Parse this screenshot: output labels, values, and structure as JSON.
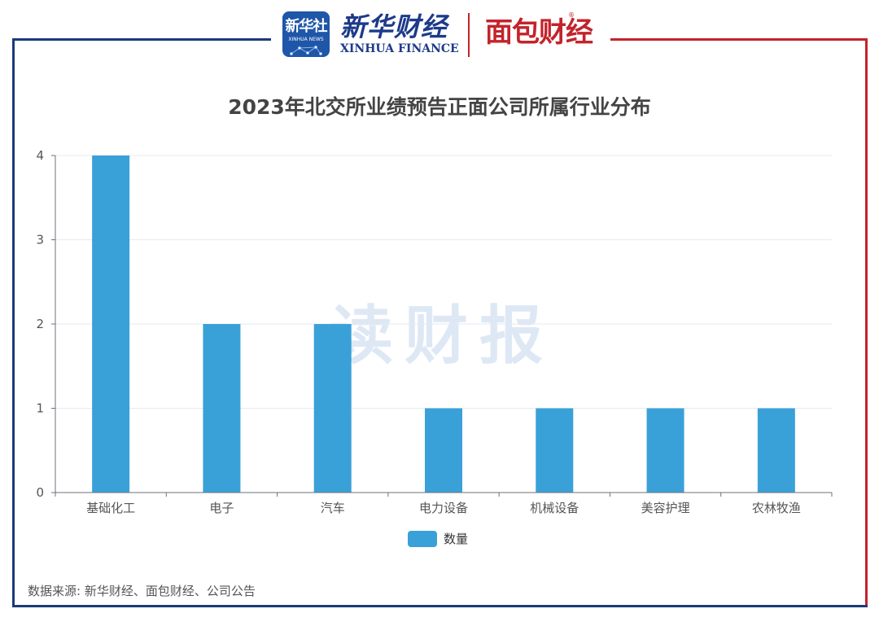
{
  "brand": {
    "xinhua_badge": "新华社",
    "xinhua_badge_en": "XINHUA NEWS",
    "xinhua_finance_cn": "新华财经",
    "xinhua_finance_en": "XINHUA FINANCE",
    "mianbao": "面包财经",
    "registered_mark": "®"
  },
  "watermark": "读财报",
  "source": "数据来源: 新华财经、面包财经、公司公告",
  "colors": {
    "bar": "#3aa0d8",
    "frame_blue": "#1d3a78",
    "frame_red": "#c4232b"
  },
  "chart_data": {
    "type": "bar",
    "title": "2023年北交所业绩预告正面公司所属行业分布",
    "categories": [
      "基础化工",
      "电子",
      "汽车",
      "电力设备",
      "机械设备",
      "美容护理",
      "农林牧渔"
    ],
    "series": [
      {
        "name": "数量",
        "values": [
          4,
          2,
          2,
          1,
          1,
          1,
          1
        ]
      }
    ],
    "ylim": [
      0,
      4
    ],
    "yticks": [
      0,
      1,
      2,
      3,
      4
    ],
    "grid": true,
    "legend": "bottom-center"
  }
}
